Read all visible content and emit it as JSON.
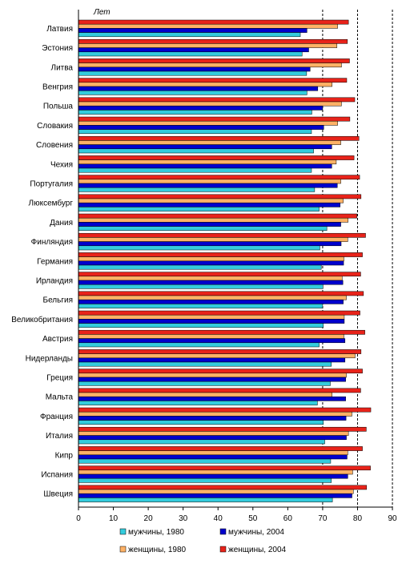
{
  "chart_data": {
    "type": "bar",
    "orientation": "horizontal",
    "unit_label": "Лет",
    "xlim": [
      0,
      90
    ],
    "x_ticks": [
      0,
      10,
      20,
      30,
      40,
      50,
      60,
      70,
      80,
      90
    ],
    "dashed_gridlines": [
      70,
      80,
      90
    ],
    "legend_position": "bottom",
    "categories": [
      "Латвия",
      "Эстония",
      "Литва",
      "Венгрия",
      "Польша",
      "Словакия",
      "Словения",
      "Чехия",
      "Португалия",
      "Люксембург",
      "Дания",
      "Финляндия",
      "Германия",
      "Ирландия",
      "Бельгия",
      "Великобритания",
      "Австрия",
      "Нидерланды",
      "Греция",
      "Мальта",
      "Франция",
      "Италия",
      "Кипр",
      "Испания",
      "Швеция"
    ],
    "series": [
      {
        "name": "женщины, 2004",
        "color": "#e8231a",
        "values": [
          77.4,
          77.1,
          77.7,
          76.9,
          79.2,
          77.8,
          80.4,
          79.0,
          80.6,
          81.0,
          79.8,
          82.3,
          81.4,
          80.9,
          81.7,
          80.7,
          82.1,
          81.0,
          81.4,
          80.9,
          83.8,
          82.5,
          81.4,
          83.7,
          82.6
        ]
      },
      {
        "name": "женщины, 1980",
        "color": "#ffb266",
        "values": [
          74.3,
          74.1,
          75.4,
          72.7,
          75.4,
          74.3,
          75.2,
          73.9,
          75.2,
          75.9,
          77.3,
          77.2,
          76.1,
          75.6,
          76.8,
          76.2,
          76.1,
          79.3,
          76.8,
          72.7,
          78.4,
          77.4,
          77.2,
          78.6,
          78.8
        ]
      },
      {
        "name": "мужчины, 2004",
        "color": "#0000cc",
        "values": [
          65.5,
          66.0,
          66.4,
          68.6,
          70.0,
          70.3,
          72.6,
          72.6,
          74.2,
          75.0,
          75.2,
          75.3,
          76.0,
          75.8,
          75.9,
          76.2,
          76.4,
          76.4,
          76.6,
          76.6,
          76.7,
          76.8,
          77.0,
          77.2,
          78.4
        ]
      },
      {
        "name": "мужчины, 1980",
        "color": "#33ccdd",
        "values": [
          63.6,
          64.1,
          65.4,
          65.5,
          66.9,
          66.8,
          67.4,
          66.8,
          67.7,
          69.0,
          71.2,
          69.2,
          69.6,
          70.1,
          70.0,
          70.2,
          69.0,
          72.5,
          72.2,
          68.5,
          70.2,
          70.6,
          72.3,
          72.5,
          72.8
        ]
      }
    ],
    "legend_entries": [
      "мужчины, 1980",
      "мужчины, 2004",
      "женщины, 1980",
      "женщины, 2004"
    ]
  }
}
